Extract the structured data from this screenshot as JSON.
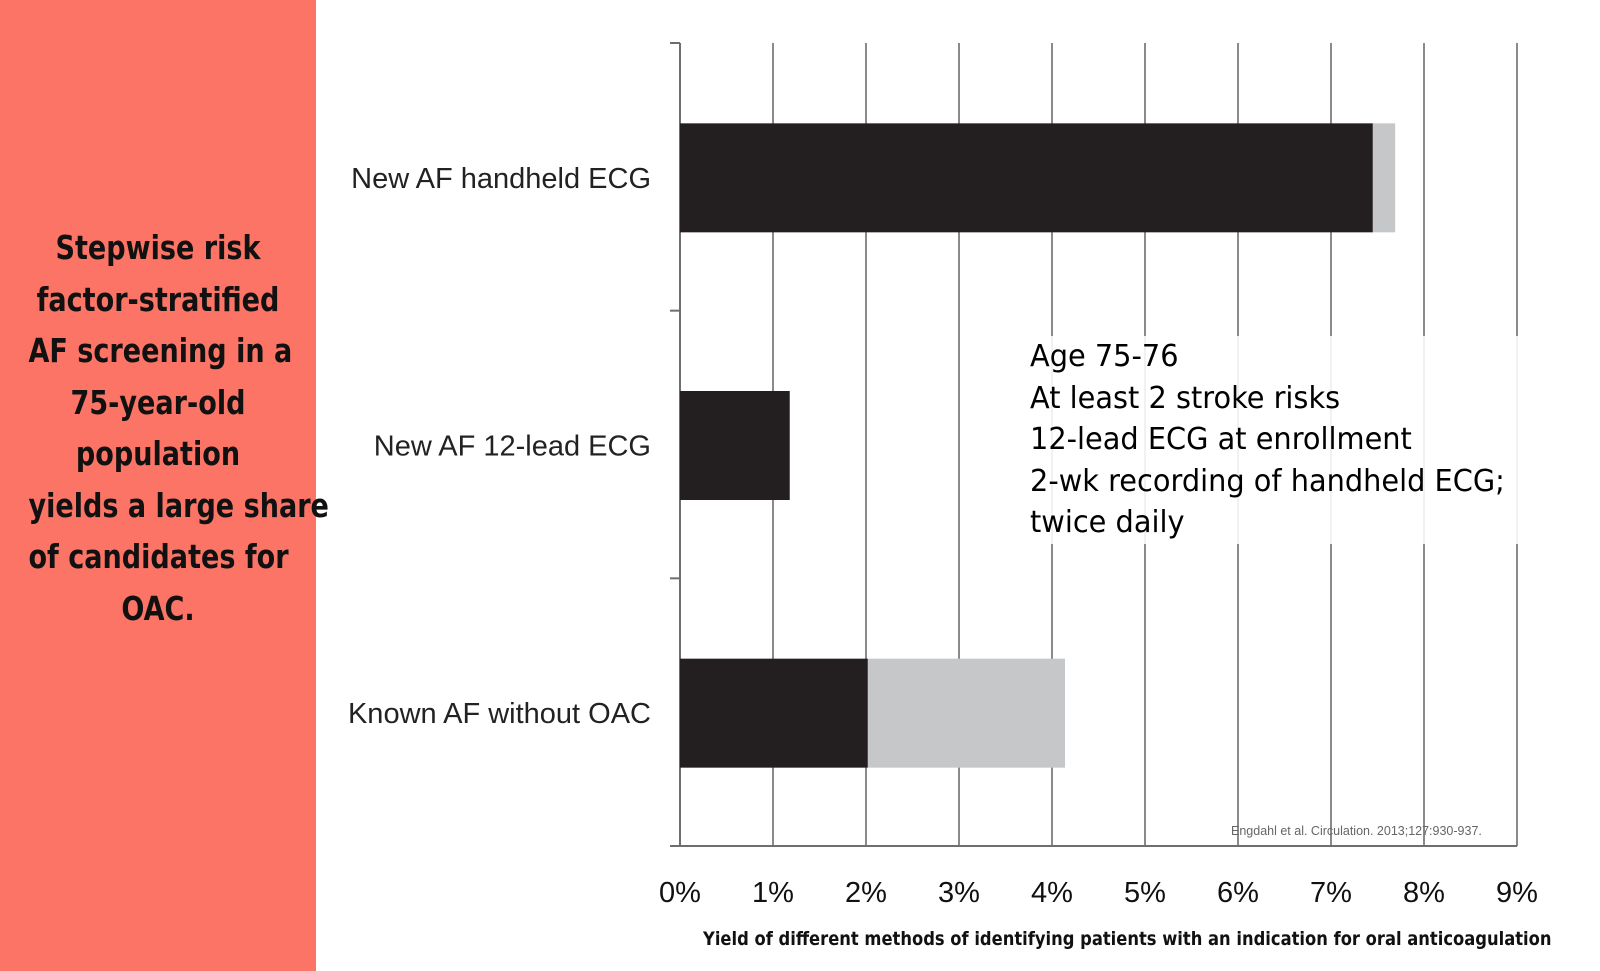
{
  "sidebar": {
    "lines": [
      "Stepwise risk",
      "factor-stratified",
      " AF screening in a",
      "75-year-old",
      "population",
      "yields a large share",
      "of candidates for",
      "OAC."
    ]
  },
  "annotation": {
    "lines": [
      "Age 75-76",
      "At least 2 stroke risks",
      "12-lead ECG at enrollment",
      "2-wk recording of handheld ECG;",
      "twice daily"
    ]
  },
  "citation": "Engdahl et al. Circulation. 2013;127:930-937.",
  "chart_data": {
    "type": "bar",
    "orientation": "horizontal",
    "stacked": true,
    "categories": [
      "New AF handheld ECG",
      "New AF 12-lead ECG",
      "Known AF without OAC"
    ],
    "series": [
      {
        "values": [
          7.45,
          1.18,
          2.02
        ],
        "color": "#231f20"
      },
      {
        "values": [
          0.24,
          0.0,
          2.12
        ],
        "color": "#c6c7c9"
      }
    ],
    "xlabel": "Yield of different methods of identifying patients with an indication for oral anticoagulation",
    "xlim": [
      0,
      9
    ],
    "xticks": [
      "0%",
      "1%",
      "2%",
      "3%",
      "4%",
      "5%",
      "6%",
      "7%",
      "8%",
      "9%"
    ],
    "grid": true,
    "gridline_color": "#8a8a8a"
  }
}
